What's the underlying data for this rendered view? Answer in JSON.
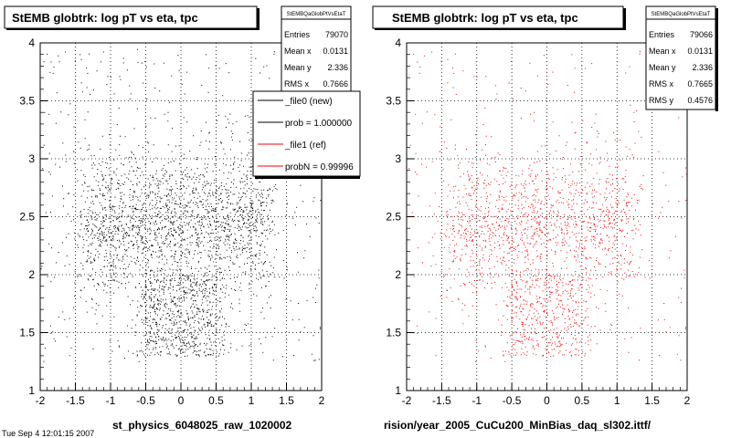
{
  "chart_data": [
    {
      "type": "scatter",
      "title": "StEMB globtrk: log pT vs eta, tpc",
      "xlabel": "st_physics_6048025_raw_1020002",
      "ylabel": "",
      "xlim": [
        -2,
        2
      ],
      "ylim": [
        1,
        4
      ],
      "x_ticks": [
        "-2",
        "-1.5",
        "-1",
        "-0.5",
        "0",
        "0.5",
        "1",
        "1.5",
        "2"
      ],
      "y_ticks": [
        "1",
        "1.5",
        "2",
        "2.5",
        "3",
        "3.5",
        "4"
      ],
      "grid": true,
      "marker_color": "#000000",
      "stats": {
        "name": "StEMBQaGlobPtVsEtaT",
        "rows": [
          {
            "label": "Entries",
            "value": "79070"
          },
          {
            "label": "Mean x",
            "value": "0.0131"
          },
          {
            "label": "Mean y",
            "value": "2.336"
          },
          {
            "label": "RMS x",
            "value": "0.7666"
          }
        ]
      },
      "legend": {
        "position": "top-right",
        "entries": [
          {
            "label": "_file0 (new)",
            "color": "#000000"
          },
          {
            "label": "prob = 1.000000",
            "color": "#000000"
          },
          {
            "label": "_file1 (ref)",
            "color": "#ff0000"
          },
          {
            "label": "probN = 0.99996",
            "color": "#ff0000"
          }
        ]
      },
      "density": {
        "description_units": "eta, log10 pT",
        "core_region": {
          "x": [
            -1.4,
            1.2
          ],
          "y": [
            1.95,
            3.1
          ]
        },
        "stem_region": {
          "x": [
            -0.55,
            0.55
          ],
          "y": [
            1.3,
            2.0
          ]
        },
        "peak_log_pt": 2.45
      }
    },
    {
      "type": "scatter",
      "title": "StEMB globtrk: log pT vs eta, tpc",
      "xlabel": "rision/year_2005_CuCu200_MinBias_daq_sl302.ittf/",
      "ylabel": "",
      "xlim": [
        -2,
        2
      ],
      "ylim": [
        1,
        4
      ],
      "x_ticks": [
        "-2",
        "-1.5",
        "-1",
        "-0.5",
        "0",
        "0.5",
        "1",
        "1.5",
        "2"
      ],
      "y_ticks": [
        "1",
        "1.5",
        "2",
        "2.5",
        "3",
        "3.5",
        "4"
      ],
      "grid": true,
      "marker_color": "#ff0000",
      "stats": {
        "name": "StEMBQaGlobPtVsEtaT",
        "rows": [
          {
            "label": "Entries",
            "value": "79066"
          },
          {
            "label": "Mean x",
            "value": "0.0131"
          },
          {
            "label": "Mean y",
            "value": "2.336"
          },
          {
            "label": "RMS x",
            "value": "0.7665"
          },
          {
            "label": "RMS y",
            "value": "0.4576"
          }
        ]
      },
      "density": {
        "description_units": "eta, log10 pT",
        "core_region": {
          "x": [
            -1.4,
            1.2
          ],
          "y": [
            1.95,
            3.1
          ]
        },
        "stem_region": {
          "x": [
            -0.55,
            0.55
          ],
          "y": [
            1.3,
            2.0
          ]
        },
        "peak_log_pt": 2.45
      }
    }
  ],
  "footer": {
    "text": "Tue Sep  4 12:01:15 2007"
  }
}
